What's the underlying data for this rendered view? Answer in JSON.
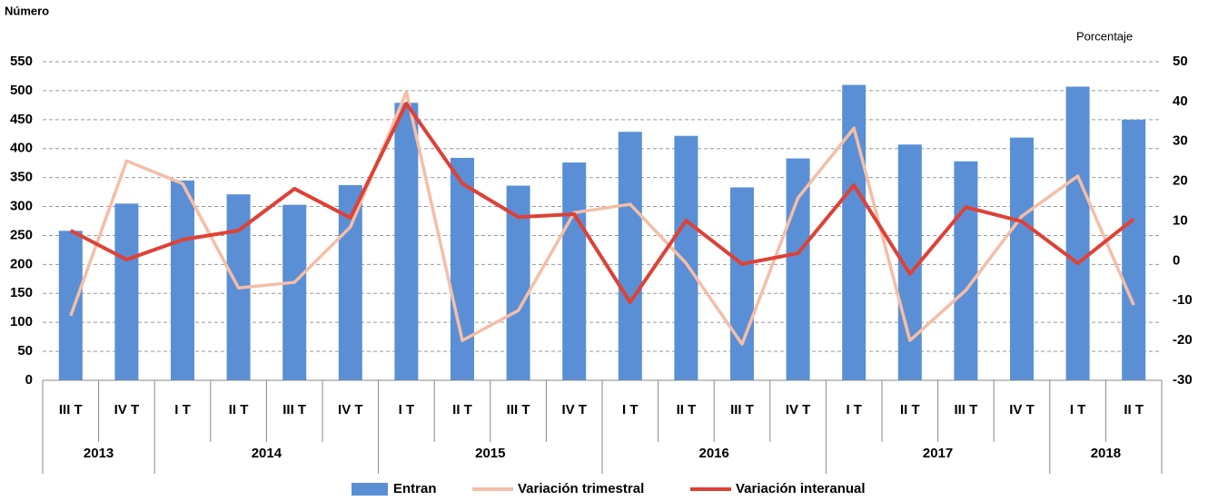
{
  "chart_data": {
    "type": "bar-line",
    "ylabel": "Número",
    "y2label": "Porcentaje",
    "categories": [
      "III T",
      "IV T",
      "I T",
      "II T",
      "III T",
      "IV T",
      "I T",
      "II T",
      "III T",
      "IV T",
      "I T",
      "II T",
      "III T",
      "IV T",
      "I T",
      "II T",
      "III T",
      "IV T",
      "I T",
      "II T"
    ],
    "years": [
      "2013",
      null,
      "2014",
      null,
      null,
      null,
      "2015",
      null,
      null,
      null,
      "2016",
      null,
      null,
      null,
      "2017",
      null,
      null,
      null,
      "2018",
      null
    ],
    "series": [
      {
        "name": "Entran",
        "type": "bar",
        "color": "#5a8fd6",
        "values": [
          258,
          305,
          345,
          321,
          303,
          337,
          479,
          384,
          336,
          376,
          429,
          422,
          333,
          383,
          510,
          407,
          378,
          419,
          507,
          450
        ]
      },
      {
        "name": "Variación trimestral",
        "type": "line",
        "axis": "y2",
        "color": "#f5bea6",
        "values": [
          -13.8,
          25.1,
          19.4,
          -6.8,
          -5.4,
          8.5,
          42.4,
          -20,
          -12.5,
          12.1,
          14.2,
          -0.6,
          -20.9,
          15.8,
          33.3,
          -20,
          -7.4,
          11.2,
          21.3,
          -11.1
        ]
      },
      {
        "name": "Variación interanual",
        "type": "line",
        "axis": "y2",
        "color": "#de4136",
        "values": [
          7.6,
          0.3,
          5.3,
          7.6,
          18.1,
          10.8,
          39.5,
          19.4,
          11,
          11.7,
          -10.4,
          10.1,
          -0.8,
          1.9,
          19,
          -3.3,
          13.5,
          9.9,
          -0.6,
          10.5
        ]
      }
    ],
    "ylim": [
      0,
      550
    ],
    "yticks": [
      0,
      50,
      100,
      150,
      200,
      250,
      300,
      350,
      400,
      450,
      500,
      550
    ],
    "y2lim": [
      -30,
      50
    ],
    "y2ticks": [
      -30,
      -20,
      -10,
      0,
      10,
      20,
      30,
      40,
      50
    ],
    "grid": true,
    "legend": "bottom"
  }
}
